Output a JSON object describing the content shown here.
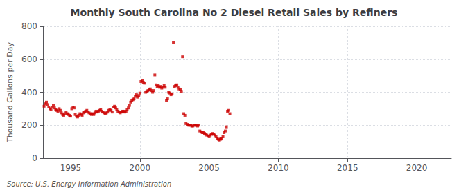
{
  "chart_data": {
    "type": "scatter",
    "title": "Monthly South Carolina No 2 Diesel Retail Sales by Refiners",
    "ylabel": "Thousand Gallons per Day",
    "annotations": [
      "Source: U.S. Energy Information Administration"
    ],
    "color": "#cc0000",
    "marker": "square",
    "grid": true,
    "xlim": [
      1993.0,
      2022.5
    ],
    "ylim": [
      0,
      800
    ],
    "xticks": [
      1995,
      2000,
      2005,
      2010,
      2015,
      2020
    ],
    "yticks": [
      0,
      200,
      400,
      600,
      800
    ],
    "x": [
      1993.08,
      1993.17,
      1993.25,
      1993.33,
      1993.42,
      1993.5,
      1993.58,
      1993.67,
      1993.75,
      1993.83,
      1993.92,
      1994.0,
      1994.08,
      1994.17,
      1994.25,
      1994.33,
      1994.42,
      1994.5,
      1994.58,
      1994.67,
      1994.75,
      1994.83,
      1994.92,
      1995.0,
      1995.08,
      1995.17,
      1995.25,
      1995.33,
      1995.42,
      1995.5,
      1995.58,
      1995.67,
      1995.75,
      1995.83,
      1995.92,
      1996.0,
      1996.08,
      1996.17,
      1996.25,
      1996.33,
      1996.42,
      1996.5,
      1996.58,
      1996.67,
      1996.75,
      1996.83,
      1996.92,
      1997.0,
      1997.08,
      1997.17,
      1997.25,
      1997.33,
      1997.42,
      1997.5,
      1997.58,
      1997.67,
      1997.75,
      1997.83,
      1997.92,
      1998.0,
      1998.08,
      1998.17,
      1998.25,
      1998.33,
      1998.42,
      1998.5,
      1998.58,
      1998.67,
      1998.75,
      1998.83,
      1998.92,
      1999.0,
      1999.08,
      1999.17,
      1999.25,
      1999.33,
      1999.42,
      1999.5,
      1999.58,
      1999.67,
      1999.75,
      1999.83,
      1999.92,
      2000.0,
      2000.08,
      2000.17,
      2000.25,
      2000.33,
      2000.42,
      2000.5,
      2000.58,
      2000.67,
      2000.75,
      2000.83,
      2000.92,
      2001.0,
      2001.08,
      2001.17,
      2001.25,
      2001.33,
      2001.42,
      2001.5,
      2001.58,
      2001.67,
      2001.75,
      2001.83,
      2001.92,
      2002.0,
      2002.08,
      2002.17,
      2002.25,
      2002.33,
      2002.42,
      2002.5,
      2002.58,
      2002.67,
      2002.75,
      2002.83,
      2002.92,
      2003.0,
      2003.08,
      2003.17,
      2003.25,
      2003.33,
      2003.42,
      2003.5,
      2003.58,
      2003.67,
      2003.75,
      2003.83,
      2003.92,
      2004.0,
      2004.08,
      2004.17,
      2004.25,
      2004.33,
      2004.42,
      2004.5,
      2004.58,
      2004.67,
      2004.75,
      2004.83,
      2004.92,
      2005.0,
      2005.08,
      2005.17,
      2005.25,
      2005.33,
      2005.42,
      2005.5,
      2005.58,
      2005.67,
      2005.75,
      2005.83,
      2005.92,
      2006.0,
      2006.08,
      2006.17,
      2006.25,
      2006.33,
      2006.42,
      2006.5
    ],
    "values": [
      315,
      330,
      340,
      325,
      310,
      300,
      295,
      310,
      320,
      305,
      295,
      290,
      285,
      300,
      290,
      275,
      265,
      260,
      270,
      280,
      270,
      265,
      260,
      255,
      300,
      310,
      305,
      265,
      255,
      250,
      260,
      270,
      265,
      260,
      275,
      280,
      285,
      290,
      280,
      275,
      270,
      265,
      270,
      265,
      275,
      285,
      280,
      285,
      290,
      295,
      285,
      280,
      275,
      270,
      275,
      280,
      290,
      295,
      290,
      280,
      310,
      315,
      305,
      295,
      285,
      280,
      275,
      280,
      285,
      285,
      280,
      285,
      295,
      305,
      320,
      340,
      350,
      355,
      360,
      375,
      385,
      370,
      380,
      395,
      465,
      470,
      460,
      455,
      400,
      405,
      410,
      415,
      420,
      410,
      400,
      410,
      505,
      445,
      435,
      440,
      430,
      435,
      425,
      430,
      440,
      430,
      350,
      360,
      400,
      395,
      385,
      390,
      700,
      435,
      440,
      445,
      430,
      420,
      415,
      405,
      615,
      270,
      260,
      210,
      205,
      200,
      200,
      200,
      195,
      195,
      200,
      200,
      200,
      195,
      200,
      165,
      160,
      155,
      155,
      150,
      145,
      140,
      135,
      130,
      140,
      145,
      150,
      145,
      140,
      130,
      120,
      115,
      110,
      115,
      120,
      130,
      155,
      165,
      190,
      285,
      290,
      270
    ]
  }
}
